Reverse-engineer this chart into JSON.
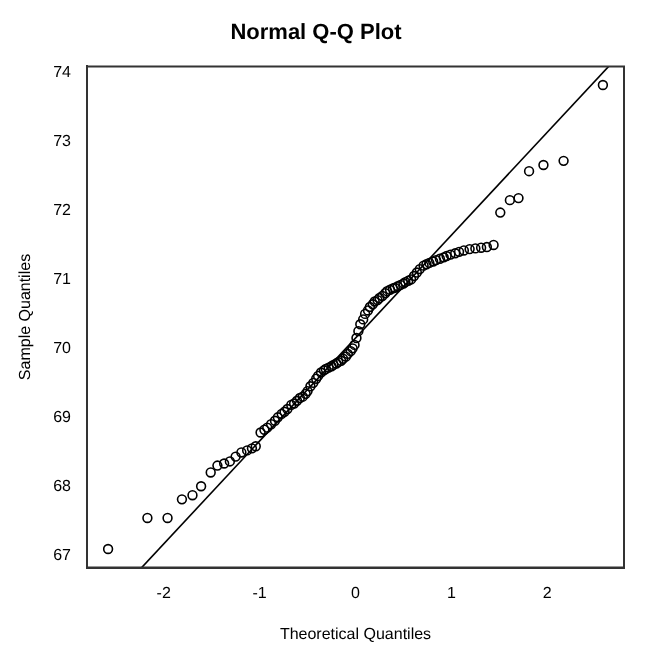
{
  "chart_data": {
    "type": "scatter",
    "title": "Normal Q-Q Plot",
    "xlabel": "Theoretical Quantiles",
    "ylabel": "Sample Quantiles",
    "xlim": [
      -2.8,
      2.8
    ],
    "ylim": [
      66.82,
      74.09
    ],
    "xticks": [
      -2,
      -1,
      0,
      1,
      2
    ],
    "yticks": [
      67,
      68,
      69,
      70,
      71,
      72,
      73,
      74
    ],
    "grid": false,
    "legend": false,
    "series": [
      {
        "color": "#000000",
        "marker": "circle",
        "x": [
          -2.58,
          -2.17,
          -1.96,
          -1.81,
          -1.7,
          -1.61,
          -1.51,
          -1.44,
          -1.37,
          -1.31,
          -1.25,
          -1.19,
          -1.13,
          -1.08,
          -1.04,
          -0.99,
          -0.95,
          -0.92,
          -0.88,
          -0.84,
          -0.81,
          -0.77,
          -0.74,
          -0.71,
          -0.67,
          -0.64,
          -0.61,
          -0.58,
          -0.55,
          -0.52,
          -0.5,
          -0.47,
          -0.44,
          -0.41,
          -0.39,
          -0.36,
          -0.33,
          -0.31,
          -0.28,
          -0.25,
          -0.23,
          -0.2,
          -0.18,
          -0.15,
          -0.13,
          -0.1,
          -0.08,
          -0.05,
          -0.03,
          -0.01,
          0.01,
          0.03,
          0.05,
          0.08,
          0.1,
          0.13,
          0.15,
          0.18,
          0.2,
          0.23,
          0.25,
          0.28,
          0.31,
          0.33,
          0.36,
          0.39,
          0.41,
          0.44,
          0.47,
          0.5,
          0.52,
          0.55,
          0.58,
          0.61,
          0.64,
          0.67,
          0.71,
          0.74,
          0.77,
          0.81,
          0.84,
          0.88,
          0.92,
          0.95,
          0.99,
          1.04,
          1.08,
          1.13,
          1.19,
          1.25,
          1.31,
          1.37,
          1.44,
          1.51,
          1.61,
          1.7,
          1.81,
          1.96,
          2.17,
          2.58
        ],
        "values": [
          67.09,
          67.54,
          67.54,
          67.81,
          67.87,
          68.0,
          68.2,
          68.3,
          68.33,
          68.36,
          68.43,
          68.49,
          68.52,
          68.55,
          68.58,
          68.78,
          68.82,
          68.85,
          68.9,
          68.95,
          69.0,
          69.05,
          69.08,
          69.12,
          69.18,
          69.2,
          69.24,
          69.28,
          69.3,
          69.34,
          69.38,
          69.45,
          69.5,
          69.56,
          69.6,
          69.65,
          69.68,
          69.7,
          69.72,
          69.74,
          69.76,
          69.78,
          69.8,
          69.82,
          69.85,
          69.88,
          69.92,
          69.96,
          70.0,
          70.05,
          70.15,
          70.25,
          70.35,
          70.42,
          70.5,
          70.55,
          70.6,
          70.64,
          70.68,
          70.7,
          70.73,
          70.76,
          70.8,
          70.83,
          70.85,
          70.87,
          70.88,
          70.9,
          70.92,
          70.94,
          70.96,
          70.98,
          71.0,
          71.05,
          71.1,
          71.15,
          71.2,
          71.22,
          71.24,
          71.26,
          71.28,
          71.3,
          71.32,
          71.34,
          71.36,
          71.38,
          71.4,
          71.42,
          71.44,
          71.45,
          71.46,
          71.47,
          71.5,
          71.97,
          72.15,
          72.18,
          72.57,
          72.66,
          72.72,
          73.82
        ]
      },
      {
        "type": "line",
        "color": "#000000",
        "marker": "none",
        "x": [
          -2.23,
          2.64
        ],
        "values": [
          66.82,
          74.09
        ]
      }
    ]
  }
}
